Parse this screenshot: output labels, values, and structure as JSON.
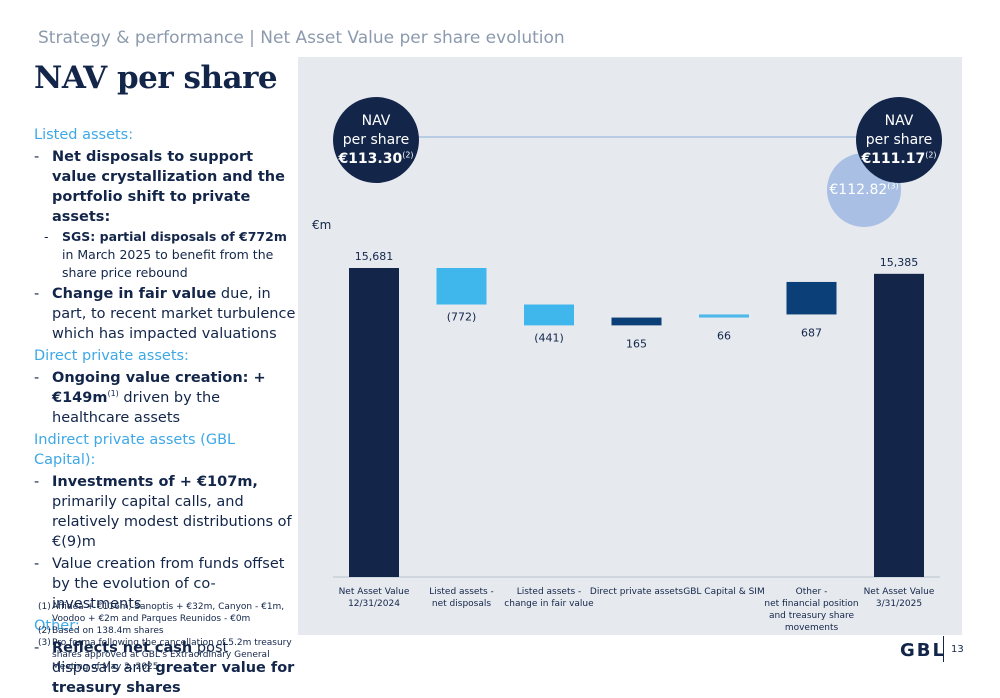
{
  "header": {
    "subtitle": "Strategy & performance | Net Asset Value per share evolution",
    "title": "NAV per share"
  },
  "left": {
    "listed": {
      "heading": "Listed assets:",
      "b1_bold": "Net disposals to support value crystallization and the portfolio shift to private assets:",
      "b1_sub_bold": "SGS: partial disposals of €772m",
      "b1_sub_rest": " in March 2025 to benefit from the share price rebound",
      "b2_bold": "Change in fair value",
      "b2_rest": " due, in part, to recent market turbulence which has impacted valuations"
    },
    "direct": {
      "heading": "Direct private assets:",
      "b1_bold": "Ongoing value creation: + €149m",
      "b1_sup": "(1)",
      "b1_rest": " driven by the healthcare assets"
    },
    "indirect": {
      "heading": "Indirect private assets (GBL Capital):",
      "b1_bold": "Investments of + €107m,",
      "b1_rest": " primarily capital calls, and relatively modest distributions of €(9)m",
      "b2": "Value creation from funds offset by the evolution of co-investments"
    },
    "other": {
      "heading": "Other:",
      "b1_bold1": "Reflects net cash",
      "b1_mid": " post disposals and ",
      "b1_bold2": "greater value for treasury shares"
    }
  },
  "footnotes": [
    {
      "num": "(1)",
      "text": "Affidea + €116m, Sanoptis + €32m, Canyon - €1m, Voodoo + €2m and Parques Reunidos - €0m"
    },
    {
      "num": "(2)",
      "text": "Based on 138.4m shares"
    },
    {
      "num": "(3)",
      "text": "Pro forma following the cancellation of 5.2m treasury shares approved at GBL's Extraordinary General Meeting of May 2, 2025"
    }
  ],
  "bubbles": {
    "start": {
      "l1": "NAV",
      "l2": "per share",
      "value": "€113.30",
      "sup": "(2)"
    },
    "end": {
      "l1": "NAV",
      "l2": "per share",
      "value": "€111.17",
      "sup": "(2)"
    },
    "proforma": {
      "value": "€112.82",
      "sup": "(3)"
    }
  },
  "chart_data": {
    "type": "bar",
    "subtype": "waterfall",
    "unit": "€m",
    "categories": [
      [
        "Net Asset Value",
        "12/31/2024"
      ],
      [
        "Listed assets -",
        "net disposals"
      ],
      [
        "Listed assets -",
        "change in fair value"
      ],
      [
        "Direct private assets"
      ],
      [
        "GBL Capital & SIM"
      ],
      [
        "Other -",
        "net financial position",
        "and treasury share",
        "movements"
      ],
      [
        "Net Asset Value",
        "3/31/2025"
      ]
    ],
    "values": [
      15681,
      -772,
      -441,
      165,
      66,
      687,
      15385
    ],
    "labels": [
      "15,681",
      "(772)",
      "(441)",
      "165",
      "66",
      "687",
      "15,385"
    ],
    "kinds": [
      "total",
      "delta",
      "delta",
      "delta",
      "delta",
      "delta",
      "total"
    ],
    "ylim": [
      0,
      16500
    ],
    "colors": {
      "total": "#13264a",
      "negative": "#3fb7ec",
      "positive_dark": "#0b3f78",
      "positive_light": "#4db8ea"
    }
  },
  "footer": {
    "brand": "GBL",
    "page": "13"
  }
}
